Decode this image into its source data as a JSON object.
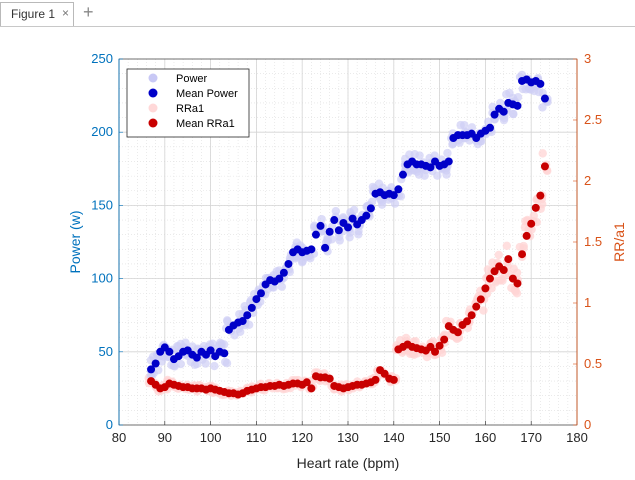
{
  "tab": {
    "label": "Figure 1",
    "close": "×",
    "add": "+"
  },
  "chart_data": {
    "type": "scatter",
    "xlabel": "Heart rate (bpm)",
    "ylabel_left": "Power (w)",
    "ylabel_right": "RR/a1",
    "xlim": [
      80,
      180
    ],
    "ylim_left": [
      0,
      250
    ],
    "ylim_right": [
      0,
      3
    ],
    "xticks": [
      "80",
      "90",
      "100",
      "110",
      "120",
      "130",
      "140",
      "150",
      "160",
      "170",
      "180"
    ],
    "yticks_left": [
      "0",
      "50",
      "100",
      "150",
      "200",
      "250"
    ],
    "yticks_right": [
      "0",
      "0.5",
      "1",
      "1.5",
      "2",
      "2.5",
      "3"
    ],
    "grid": true,
    "legend_position": "top-left",
    "colors": {
      "power": "#c8c8f5",
      "mean_power": "#0000c8",
      "rra1": "#ffc8c8",
      "mean_rra1": "#c80000",
      "left_axis": "#0072bd",
      "right_axis": "#d95319"
    },
    "legend": [
      "Power",
      "Mean Power",
      "RRa1",
      "Mean RRa1"
    ],
    "series": [
      {
        "name": "Mean Power",
        "axis": "left",
        "x": [
          87,
          88,
          89,
          90,
          91,
          92,
          93,
          94,
          95,
          96,
          97,
          98,
          99,
          100,
          101,
          102,
          103,
          104,
          105,
          106,
          107,
          108,
          109,
          110,
          111,
          112,
          113,
          114,
          115,
          116,
          117,
          118,
          119,
          120,
          121,
          122,
          123,
          124,
          125,
          126,
          127,
          128,
          129,
          130,
          131,
          132,
          133,
          134,
          135,
          136,
          137,
          138,
          139,
          140,
          141,
          142,
          143,
          144,
          145,
          146,
          147,
          148,
          149,
          150,
          151,
          152,
          153,
          154,
          155,
          156,
          157,
          158,
          159,
          160,
          161,
          162,
          163,
          164,
          165,
          166,
          167,
          168,
          169,
          170,
          171,
          172,
          173
        ],
        "y": [
          38,
          42,
          50,
          53,
          50,
          45,
          47,
          50,
          51,
          48,
          46,
          50,
          48,
          51,
          47,
          50,
          49,
          65,
          68,
          70,
          71,
          75,
          80,
          86,
          90,
          96,
          99,
          98,
          100,
          104,
          110,
          118,
          120,
          118,
          119,
          120,
          130,
          136,
          121,
          132,
          140,
          133,
          138,
          135,
          141,
          137,
          140,
          143,
          148,
          158,
          159,
          157,
          158,
          157,
          161,
          171,
          178,
          180,
          178,
          178,
          177,
          176,
          180,
          177,
          178,
          180,
          196,
          198,
          198,
          198,
          199,
          196,
          199,
          201,
          203,
          212,
          216,
          214,
          220,
          219,
          218,
          235,
          236,
          234,
          235,
          233,
          223
        ]
      },
      {
        "name": "Mean RRa1",
        "axis": "right",
        "x": [
          87,
          88,
          89,
          90,
          91,
          92,
          93,
          94,
          95,
          96,
          97,
          98,
          99,
          100,
          101,
          102,
          103,
          104,
          105,
          106,
          107,
          108,
          109,
          110,
          111,
          112,
          113,
          114,
          115,
          116,
          117,
          118,
          119,
          120,
          121,
          122,
          123,
          124,
          125,
          126,
          127,
          128,
          129,
          130,
          131,
          132,
          133,
          134,
          135,
          136,
          137,
          138,
          139,
          140,
          141,
          142,
          143,
          144,
          145,
          146,
          147,
          148,
          149,
          150,
          151,
          152,
          153,
          154,
          155,
          156,
          157,
          158,
          159,
          160,
          161,
          162,
          163,
          164,
          165,
          166,
          167,
          168,
          169,
          170,
          171,
          172,
          173
        ],
        "y": [
          0.36,
          0.33,
          0.3,
          0.31,
          0.34,
          0.33,
          0.32,
          0.31,
          0.31,
          0.3,
          0.3,
          0.3,
          0.29,
          0.3,
          0.29,
          0.28,
          0.27,
          0.26,
          0.26,
          0.25,
          0.26,
          0.28,
          0.29,
          0.3,
          0.31,
          0.31,
          0.32,
          0.32,
          0.33,
          0.32,
          0.33,
          0.34,
          0.34,
          0.33,
          0.35,
          0.3,
          0.4,
          0.39,
          0.39,
          0.38,
          0.32,
          0.31,
          0.3,
          0.31,
          0.32,
          0.33,
          0.33,
          0.34,
          0.35,
          0.37,
          0.45,
          0.42,
          0.38,
          0.37,
          0.62,
          0.64,
          0.66,
          0.64,
          0.63,
          0.62,
          0.61,
          0.64,
          0.6,
          0.65,
          0.7,
          0.81,
          0.78,
          0.76,
          0.82,
          0.85,
          0.9,
          0.97,
          1.03,
          1.12,
          1.2,
          1.26,
          1.3,
          1.27,
          1.36,
          1.2,
          1.16,
          1.4,
          1.55,
          1.65,
          1.78,
          1.88,
          2.12
        ]
      }
    ]
  }
}
